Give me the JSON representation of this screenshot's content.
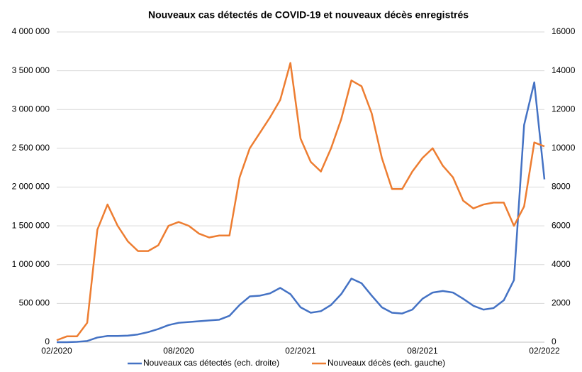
{
  "chart_data": {
    "type": "line",
    "title": "Nouveaux cas détectés de COVID-19 et nouveaux décès enregistrés",
    "categories": [
      "02/2020",
      null,
      null,
      null,
      null,
      null,
      null,
      null,
      null,
      null,
      null,
      null,
      "08/2020",
      null,
      null,
      null,
      null,
      null,
      null,
      null,
      null,
      null,
      null,
      null,
      "02/2021",
      null,
      null,
      null,
      null,
      null,
      null,
      null,
      null,
      null,
      null,
      null,
      "08/2021",
      null,
      null,
      null,
      null,
      null,
      null,
      null,
      null,
      null,
      null,
      null,
      "02/2022"
    ],
    "series": [
      {
        "name": "Nouveaux cas détectés (ech. droite)",
        "color": "#4472c4",
        "values": [
          0,
          0,
          5000,
          15000,
          60000,
          80000,
          80000,
          85000,
          100000,
          130000,
          170000,
          220000,
          250000,
          260000,
          270000,
          280000,
          290000,
          340000,
          480000,
          590000,
          600000,
          630000,
          700000,
          620000,
          450000,
          380000,
          400000,
          480000,
          620000,
          820000,
          760000,
          600000,
          450000,
          380000,
          370000,
          420000,
          560000,
          640000,
          660000,
          640000,
          560000,
          470000,
          420000,
          440000,
          540000,
          800000,
          2800000,
          3350000,
          2100000
        ]
      },
      {
        "name": "Nouveaux décès (ech. gauche)",
        "color": "#ed7d31",
        "axis": "y2",
        "values": [
          100,
          300,
          300,
          1000,
          5800,
          7100,
          6000,
          5200,
          4700,
          4700,
          5000,
          6000,
          6200,
          6000,
          5600,
          5400,
          5500,
          5500,
          8500,
          10000,
          10800,
          11600,
          12500,
          14400,
          10500,
          9300,
          8800,
          10000,
          11500,
          13500,
          13200,
          11800,
          9500,
          7900,
          7900,
          8800,
          9500,
          10000,
          9100,
          8500,
          7300,
          6900,
          7100,
          7200,
          7200,
          6000,
          7000,
          10300,
          10100
        ]
      }
    ],
    "ylim": [
      0,
      4000000
    ],
    "yticks": [
      0,
      {
        "value": 500000,
        "label": "500 000"
      },
      {
        "value": 1000000,
        "label": "1 000 000"
      },
      {
        "value": 1500000,
        "label": "1 500 000"
      },
      {
        "value": 2000000,
        "label": "2 000 000"
      },
      {
        "value": 2500000,
        "label": "2 500 000"
      },
      {
        "value": 3000000,
        "label": "3 000 000"
      },
      {
        "value": 3500000,
        "label": "3 500 000"
      },
      {
        "value": 4000000,
        "label": "4 000 000"
      }
    ],
    "y2lim": [
      0,
      16000
    ],
    "y2ticks": [
      0,
      2000,
      4000,
      6000,
      8000,
      10000,
      12000,
      14000,
      16000
    ],
    "grid": true
  }
}
